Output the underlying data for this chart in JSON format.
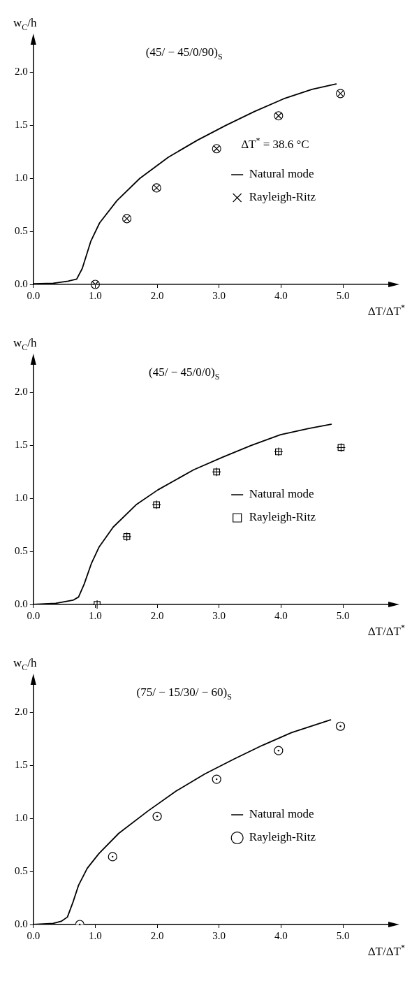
{
  "chart_data": [
    {
      "type": "line",
      "title": "(45/ − 45/0/90)$_{S}$",
      "xlabel": "ΔT/ΔT$^{*}$",
      "ylabel": "w$_{C}$/h",
      "annotations": [
        "ΔT$^{*}$ = 38.6 °C"
      ],
      "xlim": [
        0,
        5.8
      ],
      "ylim": [
        0,
        2.3
      ],
      "xticks": [
        {
          "value": 0,
          "label": "0.0"
        },
        {
          "value": 1,
          "label": "1.0"
        },
        {
          "value": 2,
          "label": "2.0"
        },
        {
          "value": 3,
          "label": "3.0"
        },
        {
          "value": 4,
          "label": "4.0"
        },
        {
          "value": 5,
          "label": "5.0"
        }
      ],
      "yticks": [
        {
          "value": 0,
          "label": "0.0"
        },
        {
          "value": 0.5,
          "label": "0.5"
        },
        {
          "value": 1,
          "label": "1.0"
        },
        {
          "value": 1.5,
          "label": "1.5"
        },
        {
          "value": 2,
          "label": "2.0"
        }
      ],
      "grid": false,
      "legend": "right",
      "series": [
        {
          "name": "Natural mode",
          "type": "line",
          "color": "#000000",
          "line_style": "solid",
          "x": [
            0,
            0.32,
            0.56,
            0.7,
            0.79,
            0.93,
            1.07,
            1.35,
            1.72,
            2.18,
            2.65,
            3.11,
            3.57,
            4.04,
            4.5,
            4.89
          ],
          "values": [
            0.005,
            0.01,
            0.03,
            0.05,
            0.15,
            0.41,
            0.58,
            0.79,
            1.0,
            1.2,
            1.36,
            1.5,
            1.63,
            1.75,
            1.84,
            1.89
          ]
        },
        {
          "name": "Rayleigh-Ritz",
          "type": "scatter",
          "color": "#000000",
          "marker": "cross",
          "x": [
            1.0,
            1.51,
            1.99,
            2.96,
            3.96,
            4.96
          ],
          "values": [
            0,
            0.62,
            0.91,
            1.28,
            1.59,
            1.8
          ]
        }
      ]
    },
    {
      "type": "line",
      "title": "(45/ − 45/0/0)$_{S}$",
      "xlabel": "ΔT/ΔT$^{*}$",
      "ylabel": "w$_{C}$/h",
      "xlim": [
        0,
        5.8
      ],
      "ylim": [
        0,
        2.3
      ],
      "xticks": [
        {
          "value": 0,
          "label": "0.0"
        },
        {
          "value": 1,
          "label": "1.0"
        },
        {
          "value": 2,
          "label": "2.0"
        },
        {
          "value": 3,
          "label": "3.0"
        },
        {
          "value": 4,
          "label": "4.0"
        },
        {
          "value": 5,
          "label": "5.0"
        }
      ],
      "yticks": [
        {
          "value": 0,
          "label": "0.0"
        },
        {
          "value": 0.5,
          "label": "0.5"
        },
        {
          "value": 1,
          "label": "1.0"
        },
        {
          "value": 1.5,
          "label": "1.5"
        },
        {
          "value": 2,
          "label": "2.0"
        }
      ],
      "grid": false,
      "legend": "right",
      "series": [
        {
          "name": "Natural mode",
          "type": "line",
          "color": "#000000",
          "line_style": "solid",
          "x": [
            0,
            0.36,
            0.64,
            0.73,
            0.82,
            0.94,
            1.06,
            1.29,
            1.66,
            2.01,
            2.59,
            3.06,
            3.52,
            3.99,
            4.45,
            4.81
          ],
          "values": [
            0,
            0.01,
            0.04,
            0.07,
            0.19,
            0.39,
            0.54,
            0.73,
            0.94,
            1.08,
            1.27,
            1.39,
            1.5,
            1.6,
            1.66,
            1.7
          ]
        },
        {
          "name": "Rayleigh-Ritz",
          "type": "scatter",
          "color": "#000000",
          "marker": "square",
          "x": [
            1.03,
            1.51,
            1.99,
            2.96,
            3.96,
            4.97
          ],
          "values": [
            0,
            0.64,
            0.94,
            1.25,
            1.44,
            1.48
          ]
        }
      ]
    },
    {
      "type": "line",
      "title": "(75/ − 15/30/ − 60)$_{S}$",
      "xlabel": "ΔT/ΔT$^{*}$",
      "ylabel": "w$_{C}$/h",
      "xlim": [
        0,
        5.8
      ],
      "ylim": [
        0,
        2.3
      ],
      "xticks": [
        {
          "value": 0,
          "label": "0.0"
        },
        {
          "value": 1,
          "label": "1.0"
        },
        {
          "value": 2,
          "label": "2.0"
        },
        {
          "value": 3,
          "label": "3.0"
        },
        {
          "value": 4,
          "label": "4.0"
        },
        {
          "value": 5,
          "label": "5.0"
        }
      ],
      "yticks": [
        {
          "value": 0,
          "label": "0.0"
        },
        {
          "value": 0.5,
          "label": "0.5"
        },
        {
          "value": 1,
          "label": "1.0"
        },
        {
          "value": 1.5,
          "label": "1.5"
        },
        {
          "value": 2,
          "label": "2.0"
        }
      ],
      "grid": false,
      "legend": "right",
      "series": [
        {
          "name": "Natural mode",
          "type": "line",
          "color": "#000000",
          "line_style": "solid",
          "x": [
            0,
            0.32,
            0.45,
            0.55,
            0.64,
            0.73,
            0.87,
            1.06,
            1.38,
            1.85,
            2.31,
            2.77,
            3.24,
            3.7,
            4.17,
            4.8
          ],
          "values": [
            0,
            0.01,
            0.03,
            0.07,
            0.21,
            0.37,
            0.53,
            0.67,
            0.86,
            1.07,
            1.26,
            1.42,
            1.56,
            1.69,
            1.81,
            1.93
          ]
        },
        {
          "name": "Rayleigh-Ritz",
          "type": "scatter",
          "color": "#000000",
          "marker": "circle",
          "x": [
            0.75,
            1.28,
            2.0,
            2.96,
            3.96,
            4.96
          ],
          "values": [
            0,
            0.64,
            1.02,
            1.37,
            1.64,
            1.87
          ]
        }
      ]
    }
  ]
}
